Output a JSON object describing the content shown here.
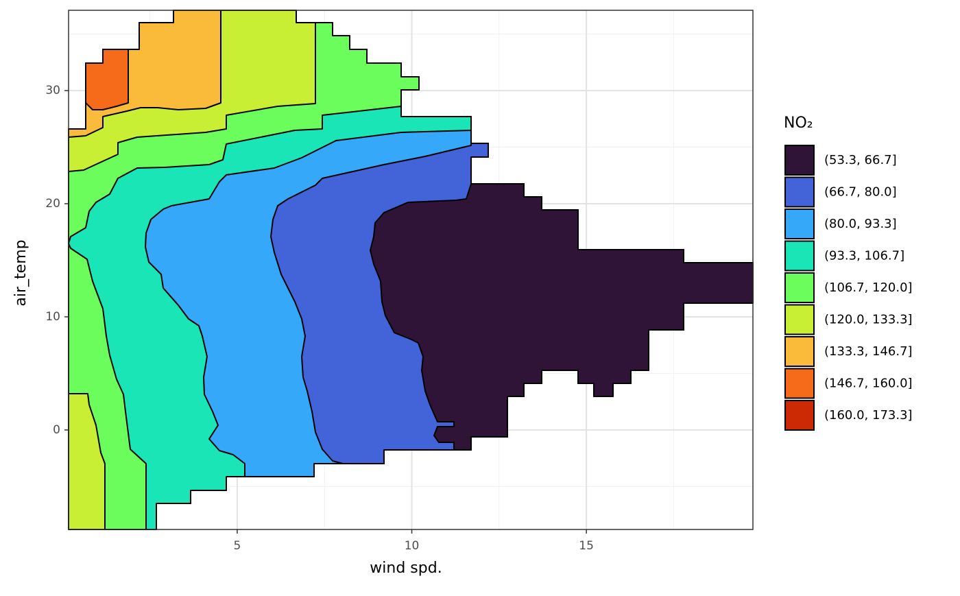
{
  "chart_data": {
    "type": "contour",
    "x_label": "wind spd.",
    "y_label": "air_temp",
    "legend_title": "NO₂",
    "levels": [
      53.3,
      66.7,
      80.0,
      93.3,
      106.7,
      120.0,
      133.3,
      146.7,
      160.0,
      173.3
    ],
    "series": [
      {
        "name": "(53.3, 66.7]",
        "color": "#2f1437"
      },
      {
        "name": "(66.7, 80.0]",
        "color": "#4363d8"
      },
      {
        "name": "(80.0, 93.3]",
        "color": "#36a8f9"
      },
      {
        "name": "(93.3, 106.7]",
        "color": "#1ae5b6"
      },
      {
        "name": "(106.7, 120.0]",
        "color": "#6afd5b"
      },
      {
        "name": "(120.0, 133.3]",
        "color": "#c8ef34"
      },
      {
        "name": "(133.3, 146.7]",
        "color": "#fabb3b"
      },
      {
        "name": "(146.7, 160.0]",
        "color": "#f66b19"
      },
      {
        "name": "(160.0, 173.3]",
        "color": "#cb2a04"
      }
    ],
    "xlim": [
      0.17,
      19.77
    ],
    "ylim": [
      -8.8,
      37.1
    ],
    "xticks": [
      5,
      10,
      15
    ],
    "yticks": [
      0,
      10,
      20,
      30
    ],
    "minor_xticks": [
      2.5,
      7.5,
      12.5,
      17.5
    ],
    "minor_yticks": [
      -5,
      5,
      15,
      25,
      35
    ],
    "grid": true
  }
}
